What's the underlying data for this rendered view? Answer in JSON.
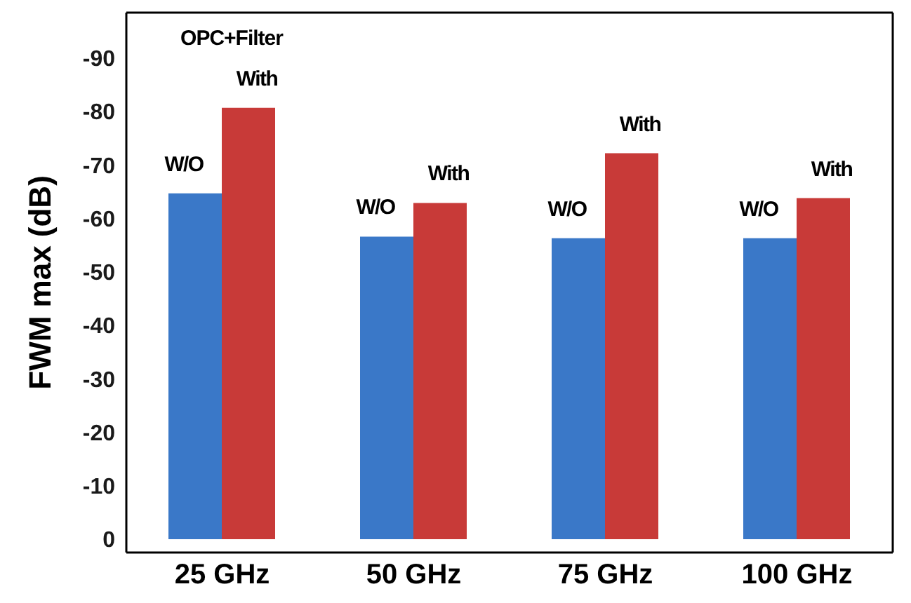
{
  "chart_data": {
    "type": "bar",
    "ylabel": "FWM max (dB)",
    "categories": [
      "25 GHz",
      "50 GHz",
      "75 GHz",
      "100 GHz"
    ],
    "series": [
      {
        "name": "W/O",
        "color": "#3a78c8",
        "values": [
          -64.7,
          -56.6,
          -56.3,
          -56.3
        ]
      },
      {
        "name": "With",
        "color": "#c83a38",
        "values": [
          -80.7,
          -62.9,
          -72.2,
          -63.8
        ]
      }
    ],
    "ylim": [
      2.5,
      -98.5
    ],
    "yticks": [
      0,
      -10,
      -20,
      -30,
      -40,
      -50,
      -60,
      -70,
      -80,
      -90
    ],
    "annotations": [
      "OPC+Filter"
    ],
    "grid": false,
    "legend": false
  }
}
